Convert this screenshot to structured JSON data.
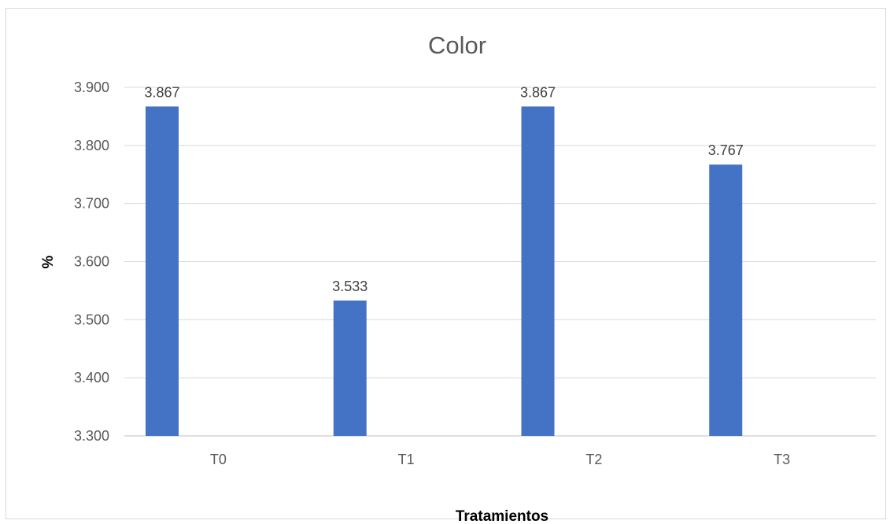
{
  "chart_data": {
    "type": "bar",
    "title": "Color",
    "xlabel": "Tratamientos",
    "ylabel": "%",
    "categories": [
      "T0",
      "T1",
      "T2",
      "T3"
    ],
    "values": [
      3.867,
      3.533,
      3.867,
      3.767
    ],
    "data_labels": [
      "3.867",
      "3.533",
      "3.867",
      "3.767"
    ],
    "ylim": [
      3.3,
      3.9
    ],
    "yticks": [
      3.3,
      3.4,
      3.5,
      3.6,
      3.7,
      3.8,
      3.9
    ],
    "ytick_labels": [
      "3.300",
      "3.400",
      "3.500",
      "3.600",
      "3.700",
      "3.800",
      "3.900"
    ],
    "grid": true,
    "legend": "none",
    "bar_color": "#4472C4"
  }
}
